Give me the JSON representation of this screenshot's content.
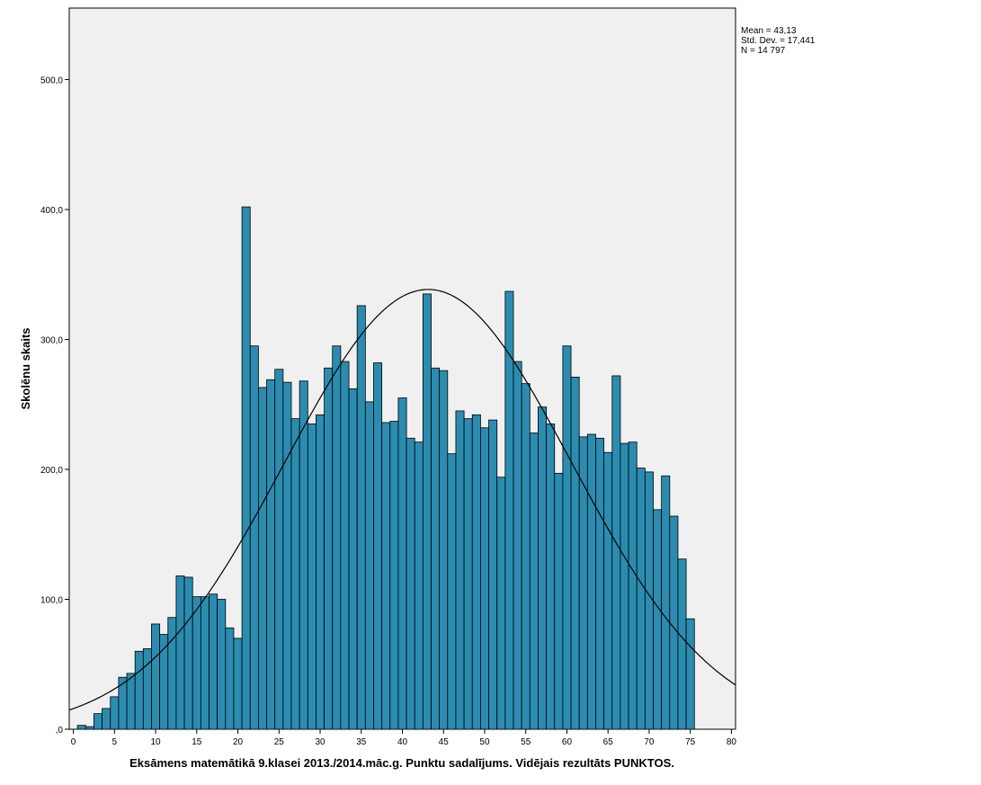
{
  "chart_data": {
    "type": "bar",
    "subtype": "histogram",
    "xlabel": "Eksāmens matemātikā 9.klasei 2013./2014.māc.g. Punktu sadalījums. Vidējais rezultāts PUNKTOS.",
    "ylabel": "Skolēnu skaits",
    "xlim": [
      -0.5,
      80.5
    ],
    "ylim": [
      0,
      555
    ],
    "x_ticks": [
      0,
      5,
      10,
      15,
      20,
      25,
      30,
      35,
      40,
      45,
      50,
      55,
      60,
      65,
      70,
      75,
      80
    ],
    "x_tick_labels": [
      "0",
      "5",
      "10",
      "15",
      "20",
      "25",
      "30",
      "35",
      "40",
      "45",
      "50",
      "55",
      "60",
      "65",
      "70",
      "75",
      "80"
    ],
    "y_ticks": [
      0,
      100,
      200,
      300,
      400,
      500
    ],
    "y_tick_labels": [
      ",0",
      "100,0",
      "200,0",
      "300,0",
      "400,0",
      "500,0"
    ],
    "grid": false,
    "bar_color": "#2b8cb0",
    "plot_background": "#f0f0f0",
    "bins_x": [
      0,
      1,
      2,
      3,
      4,
      5,
      6,
      7,
      8,
      9,
      10,
      11,
      12,
      13,
      14,
      15,
      16,
      17,
      18,
      19,
      20,
      21,
      22,
      23,
      24,
      25,
      26,
      27,
      28,
      29,
      30,
      31,
      32,
      33,
      34,
      35,
      36,
      37,
      38,
      39,
      40,
      41,
      42,
      43,
      44,
      45,
      46,
      47,
      48,
      49,
      50,
      51,
      52,
      53,
      54,
      55,
      56,
      57,
      58,
      59,
      60,
      61,
      62,
      63,
      64,
      65,
      66,
      67,
      68,
      69,
      70,
      71,
      72,
      73,
      74,
      75
    ],
    "values": [
      0,
      3,
      2,
      12,
      16,
      25,
      40,
      43,
      60,
      62,
      81,
      73,
      86,
      118,
      117,
      102,
      102,
      104,
      100,
      78,
      70,
      402,
      295,
      263,
      269,
      277,
      267,
      239,
      268,
      235,
      242,
      278,
      295,
      283,
      262,
      326,
      252,
      282,
      236,
      237,
      255,
      224,
      221,
      335,
      278,
      276,
      212,
      245,
      239,
      242,
      232,
      238,
      194,
      337,
      283,
      266,
      228,
      248,
      235,
      197,
      295,
      271,
      225,
      227,
      224,
      213,
      272,
      220,
      221,
      201,
      198,
      169,
      195,
      164,
      131,
      85
    ],
    "normal_curve": {
      "mean": 43.13,
      "std_dev": 17.441,
      "n": 14797,
      "bin_width": 1
    },
    "legend": {
      "mean_label": "Mean = 43,13",
      "std_label": "Std. Dev. = 17,441",
      "n_label": "N = 14 797"
    }
  }
}
